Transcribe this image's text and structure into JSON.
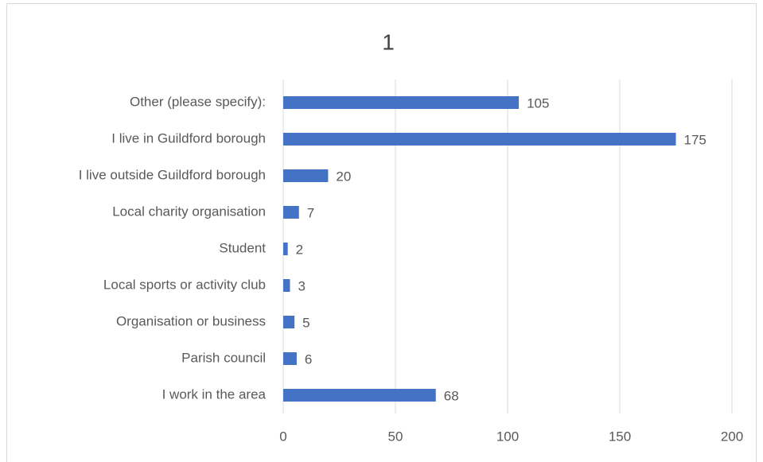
{
  "chart_data": {
    "type": "bar",
    "orientation": "horizontal",
    "title": "1",
    "categories": [
      "Other (please specify):",
      "I live in Guildford borough",
      "I live outside Guildford borough",
      "Local charity organisation",
      "Student",
      "Local sports or activity club",
      "Organisation or business",
      "Parish council",
      "I work in the area"
    ],
    "values": [
      105,
      175,
      20,
      7,
      2,
      3,
      5,
      6,
      68
    ],
    "color": "#4472c4",
    "xlim": [
      0,
      200
    ],
    "xticks": [
      0,
      50,
      100,
      150,
      200
    ],
    "grid": true
  }
}
